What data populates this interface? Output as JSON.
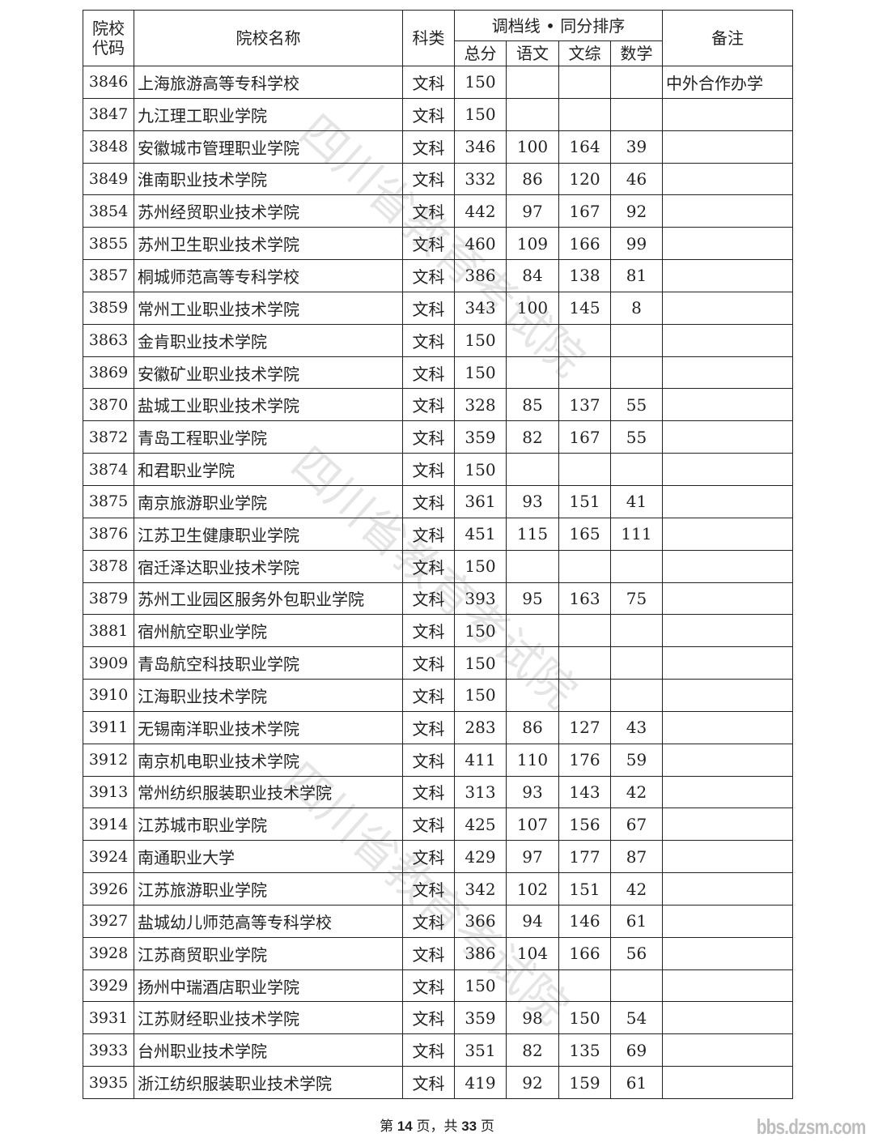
{
  "header": {
    "code": "院校代码",
    "name": "院校名称",
    "type": "科类",
    "group": "调档线 • 同分排序",
    "total": "总分",
    "chinese": "语文",
    "liberal": "文综",
    "math": "数学",
    "note": "备注"
  },
  "rows": [
    {
      "code": "3846",
      "name": "上海旅游高等专科学校",
      "type": "文科",
      "total": "150",
      "chinese": "",
      "liberal": "",
      "math": "",
      "note": "中外合作办学"
    },
    {
      "code": "3847",
      "name": "九江理工职业学院",
      "type": "文科",
      "total": "150",
      "chinese": "",
      "liberal": "",
      "math": "",
      "note": ""
    },
    {
      "code": "3848",
      "name": "安徽城市管理职业学院",
      "type": "文科",
      "total": "346",
      "chinese": "100",
      "liberal": "164",
      "math": "39",
      "note": ""
    },
    {
      "code": "3849",
      "name": "淮南职业技术学院",
      "type": "文科",
      "total": "332",
      "chinese": "86",
      "liberal": "120",
      "math": "46",
      "note": ""
    },
    {
      "code": "3854",
      "name": "苏州经贸职业技术学院",
      "type": "文科",
      "total": "442",
      "chinese": "97",
      "liberal": "167",
      "math": "92",
      "note": ""
    },
    {
      "code": "3855",
      "name": "苏州卫生职业技术学院",
      "type": "文科",
      "total": "460",
      "chinese": "109",
      "liberal": "166",
      "math": "99",
      "note": ""
    },
    {
      "code": "3857",
      "name": "桐城师范高等专科学校",
      "type": "文科",
      "total": "386",
      "chinese": "84",
      "liberal": "138",
      "math": "81",
      "note": ""
    },
    {
      "code": "3859",
      "name": "常州工业职业技术学院",
      "type": "文科",
      "total": "343",
      "chinese": "100",
      "liberal": "145",
      "math": "8",
      "note": ""
    },
    {
      "code": "3863",
      "name": "金肯职业技术学院",
      "type": "文科",
      "total": "150",
      "chinese": "",
      "liberal": "",
      "math": "",
      "note": ""
    },
    {
      "code": "3869",
      "name": "安徽矿业职业技术学院",
      "type": "文科",
      "total": "150",
      "chinese": "",
      "liberal": "",
      "math": "",
      "note": ""
    },
    {
      "code": "3870",
      "name": "盐城工业职业技术学院",
      "type": "文科",
      "total": "328",
      "chinese": "85",
      "liberal": "137",
      "math": "55",
      "note": ""
    },
    {
      "code": "3872",
      "name": "青岛工程职业学院",
      "type": "文科",
      "total": "359",
      "chinese": "82",
      "liberal": "167",
      "math": "55",
      "note": ""
    },
    {
      "code": "3874",
      "name": "和君职业学院",
      "type": "文科",
      "total": "150",
      "chinese": "",
      "liberal": "",
      "math": "",
      "note": ""
    },
    {
      "code": "3875",
      "name": "南京旅游职业学院",
      "type": "文科",
      "total": "361",
      "chinese": "93",
      "liberal": "151",
      "math": "41",
      "note": ""
    },
    {
      "code": "3876",
      "name": "江苏卫生健康职业学院",
      "type": "文科",
      "total": "451",
      "chinese": "115",
      "liberal": "165",
      "math": "111",
      "note": ""
    },
    {
      "code": "3878",
      "name": "宿迁泽达职业技术学院",
      "type": "文科",
      "total": "150",
      "chinese": "",
      "liberal": "",
      "math": "",
      "note": ""
    },
    {
      "code": "3879",
      "name": "苏州工业园区服务外包职业学院",
      "type": "文科",
      "total": "393",
      "chinese": "95",
      "liberal": "163",
      "math": "75",
      "note": ""
    },
    {
      "code": "3881",
      "name": "宿州航空职业学院",
      "type": "文科",
      "total": "150",
      "chinese": "",
      "liberal": "",
      "math": "",
      "note": ""
    },
    {
      "code": "3909",
      "name": "青岛航空科技职业学院",
      "type": "文科",
      "total": "150",
      "chinese": "",
      "liberal": "",
      "math": "",
      "note": ""
    },
    {
      "code": "3910",
      "name": "江海职业技术学院",
      "type": "文科",
      "total": "150",
      "chinese": "",
      "liberal": "",
      "math": "",
      "note": ""
    },
    {
      "code": "3911",
      "name": "无锡南洋职业技术学院",
      "type": "文科",
      "total": "283",
      "chinese": "86",
      "liberal": "127",
      "math": "43",
      "note": ""
    },
    {
      "code": "3912",
      "name": "南京机电职业技术学院",
      "type": "文科",
      "total": "411",
      "chinese": "110",
      "liberal": "176",
      "math": "59",
      "note": ""
    },
    {
      "code": "3913",
      "name": "常州纺织服装职业技术学院",
      "type": "文科",
      "total": "313",
      "chinese": "93",
      "liberal": "143",
      "math": "42",
      "note": ""
    },
    {
      "code": "3914",
      "name": "江苏城市职业学院",
      "type": "文科",
      "total": "425",
      "chinese": "107",
      "liberal": "156",
      "math": "67",
      "note": ""
    },
    {
      "code": "3924",
      "name": "南通职业大学",
      "type": "文科",
      "total": "429",
      "chinese": "97",
      "liberal": "177",
      "math": "87",
      "note": ""
    },
    {
      "code": "3926",
      "name": "江苏旅游职业学院",
      "type": "文科",
      "total": "342",
      "chinese": "102",
      "liberal": "151",
      "math": "42",
      "note": ""
    },
    {
      "code": "3927",
      "name": "盐城幼儿师范高等专科学校",
      "type": "文科",
      "total": "366",
      "chinese": "94",
      "liberal": "146",
      "math": "61",
      "note": ""
    },
    {
      "code": "3928",
      "name": "江苏商贸职业学院",
      "type": "文科",
      "total": "386",
      "chinese": "104",
      "liberal": "166",
      "math": "56",
      "note": ""
    },
    {
      "code": "3929",
      "name": "扬州中瑞酒店职业学院",
      "type": "文科",
      "total": "150",
      "chinese": "",
      "liberal": "",
      "math": "",
      "note": ""
    },
    {
      "code": "3931",
      "name": "江苏财经职业技术学院",
      "type": "文科",
      "total": "359",
      "chinese": "98",
      "liberal": "150",
      "math": "54",
      "note": ""
    },
    {
      "code": "3933",
      "name": "台州职业技术学院",
      "type": "文科",
      "total": "351",
      "chinese": "82",
      "liberal": "135",
      "math": "69",
      "note": ""
    },
    {
      "code": "3935",
      "name": "浙江纺织服装职业技术学院",
      "type": "文科",
      "total": "419",
      "chinese": "92",
      "liberal": "159",
      "math": "61",
      "note": ""
    }
  ],
  "footer": {
    "prefix": "第 ",
    "page": "14",
    "mid": " 页，共 ",
    "total_pages": "33",
    "suffix": " 页"
  },
  "site_watermark": "bbs.dzsm.com",
  "watermark": "四川省教育考试院"
}
